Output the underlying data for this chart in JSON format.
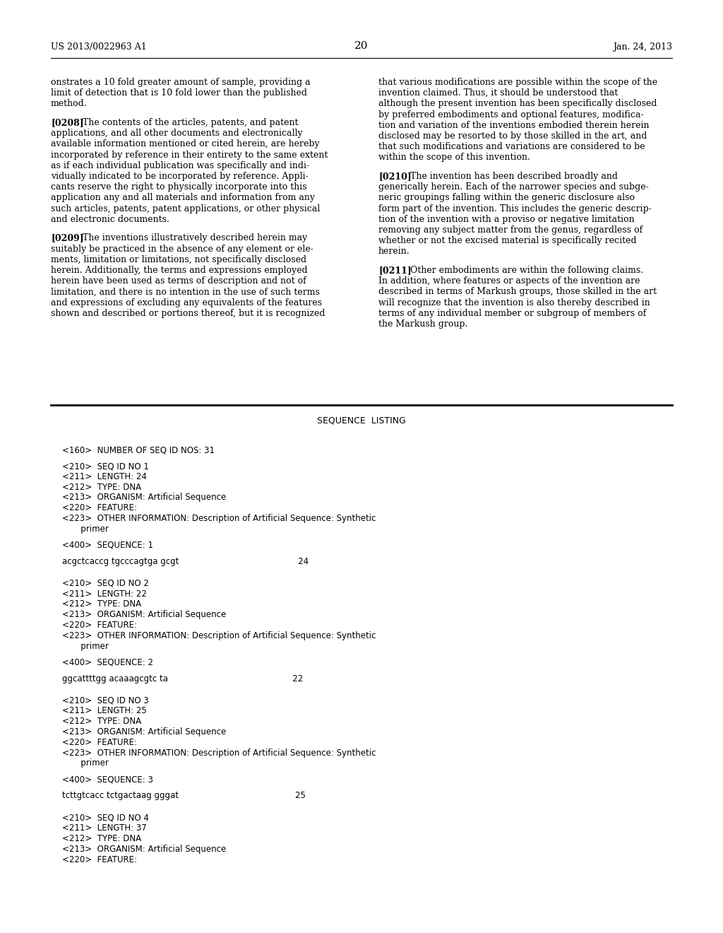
{
  "bg_color": "#ffffff",
  "header_left": "US 2013/0022963 A1",
  "header_right": "Jan. 24, 2013",
  "page_number": "20",
  "left_col_lines": [
    "onstrates a 10 fold greater amount of sample, providing a",
    "limit of detection that is 10 fold lower than the published",
    "method.",
    "",
    "[0208]   The contents of the articles, patents, and patent",
    "applications, and all other documents and electronically",
    "available information mentioned or cited herein, are hereby",
    "incorporated by reference in their entirety to the same extent",
    "as if each individual publication was specifically and indi-",
    "vidually indicated to be incorporated by reference. Appli-",
    "cants reserve the right to physically incorporate into this",
    "application any and all materials and information from any",
    "such articles, patents, patent applications, or other physical",
    "and electronic documents.",
    "",
    "[0209]   The inventions illustratively described herein may",
    "suitably be practiced in the absence of any element or ele-",
    "ments, limitation or limitations, not specifically disclosed",
    "herein. Additionally, the terms and expressions employed",
    "herein have been used as terms of description and not of",
    "limitation, and there is no intention in the use of such terms",
    "and expressions of excluding any equivalents of the features",
    "shown and described or portions thereof, but it is recognized"
  ],
  "left_col_bold": [
    false,
    false,
    false,
    false,
    true,
    false,
    false,
    false,
    false,
    false,
    false,
    false,
    false,
    false,
    false,
    true,
    false,
    false,
    false,
    false,
    false,
    false,
    false
  ],
  "right_col_lines": [
    "that various modifications are possible within the scope of the",
    "invention claimed. Thus, it should be understood that",
    "although the present invention has been specifically disclosed",
    "by preferred embodiments and optional features, modifica-",
    "tion and variation of the inventions embodied therein herein",
    "disclosed may be resorted to by those skilled in the art, and",
    "that such modifications and variations are considered to be",
    "within the scope of this invention.",
    "",
    "[0210]   The invention has been described broadly and",
    "generically herein. Each of the narrower species and subge-",
    "neric groupings falling within the generic disclosure also",
    "form part of the invention. This includes the generic descrip-",
    "tion of the invention with a proviso or negative limitation",
    "removing any subject matter from the genus, regardless of",
    "whether or not the excised material is specifically recited",
    "herein.",
    "",
    "[0211]   Other embodiments are within the following claims.",
    "In addition, where features or aspects of the invention are",
    "described in terms of Markush groups, those skilled in the art",
    "will recognize that the invention is also thereby described in",
    "terms of any individual member or subgroup of members of",
    "the Markush group."
  ],
  "right_col_bold": [
    false,
    false,
    false,
    false,
    false,
    false,
    false,
    false,
    false,
    true,
    false,
    false,
    false,
    false,
    false,
    false,
    false,
    false,
    true,
    false,
    false,
    false,
    false,
    false
  ],
  "sequence_listing_title": "SEQUENCE  LISTING",
  "sequence_lines": [
    "",
    "<160>  NUMBER OF SEQ ID NOS: 31",
    "",
    "<210>  SEQ ID NO 1",
    "<211>  LENGTH: 24",
    "<212>  TYPE: DNA",
    "<213>  ORGANISM: Artificial Sequence",
    "<220>  FEATURE:",
    "<223>  OTHER INFORMATION: Description of Artificial Sequence: Synthetic",
    "       primer",
    "",
    "<400>  SEQUENCE: 1",
    "",
    "acgctcaccg tgcccagtga gcgt                                             24",
    "",
    "",
    "<210>  SEQ ID NO 2",
    "<211>  LENGTH: 22",
    "<212>  TYPE: DNA",
    "<213>  ORGANISM: Artificial Sequence",
    "<220>  FEATURE:",
    "<223>  OTHER INFORMATION: Description of Artificial Sequence: Synthetic",
    "       primer",
    "",
    "<400>  SEQUENCE: 2",
    "",
    "ggcattttgg acaaagcgtc ta                                               22",
    "",
    "",
    "<210>  SEQ ID NO 3",
    "<211>  LENGTH: 25",
    "<212>  TYPE: DNA",
    "<213>  ORGANISM: Artificial Sequence",
    "<220>  FEATURE:",
    "<223>  OTHER INFORMATION: Description of Artificial Sequence: Synthetic",
    "       primer",
    "",
    "<400>  SEQUENCE: 3",
    "",
    "tcttgtcacc tctgactaag gggat                                            25",
    "",
    "",
    "<210>  SEQ ID NO 4",
    "<211>  LENGTH: 37",
    "<212>  TYPE: DNA",
    "<213>  ORGANISM: Artificial Sequence",
    "<220>  FEATURE:"
  ]
}
